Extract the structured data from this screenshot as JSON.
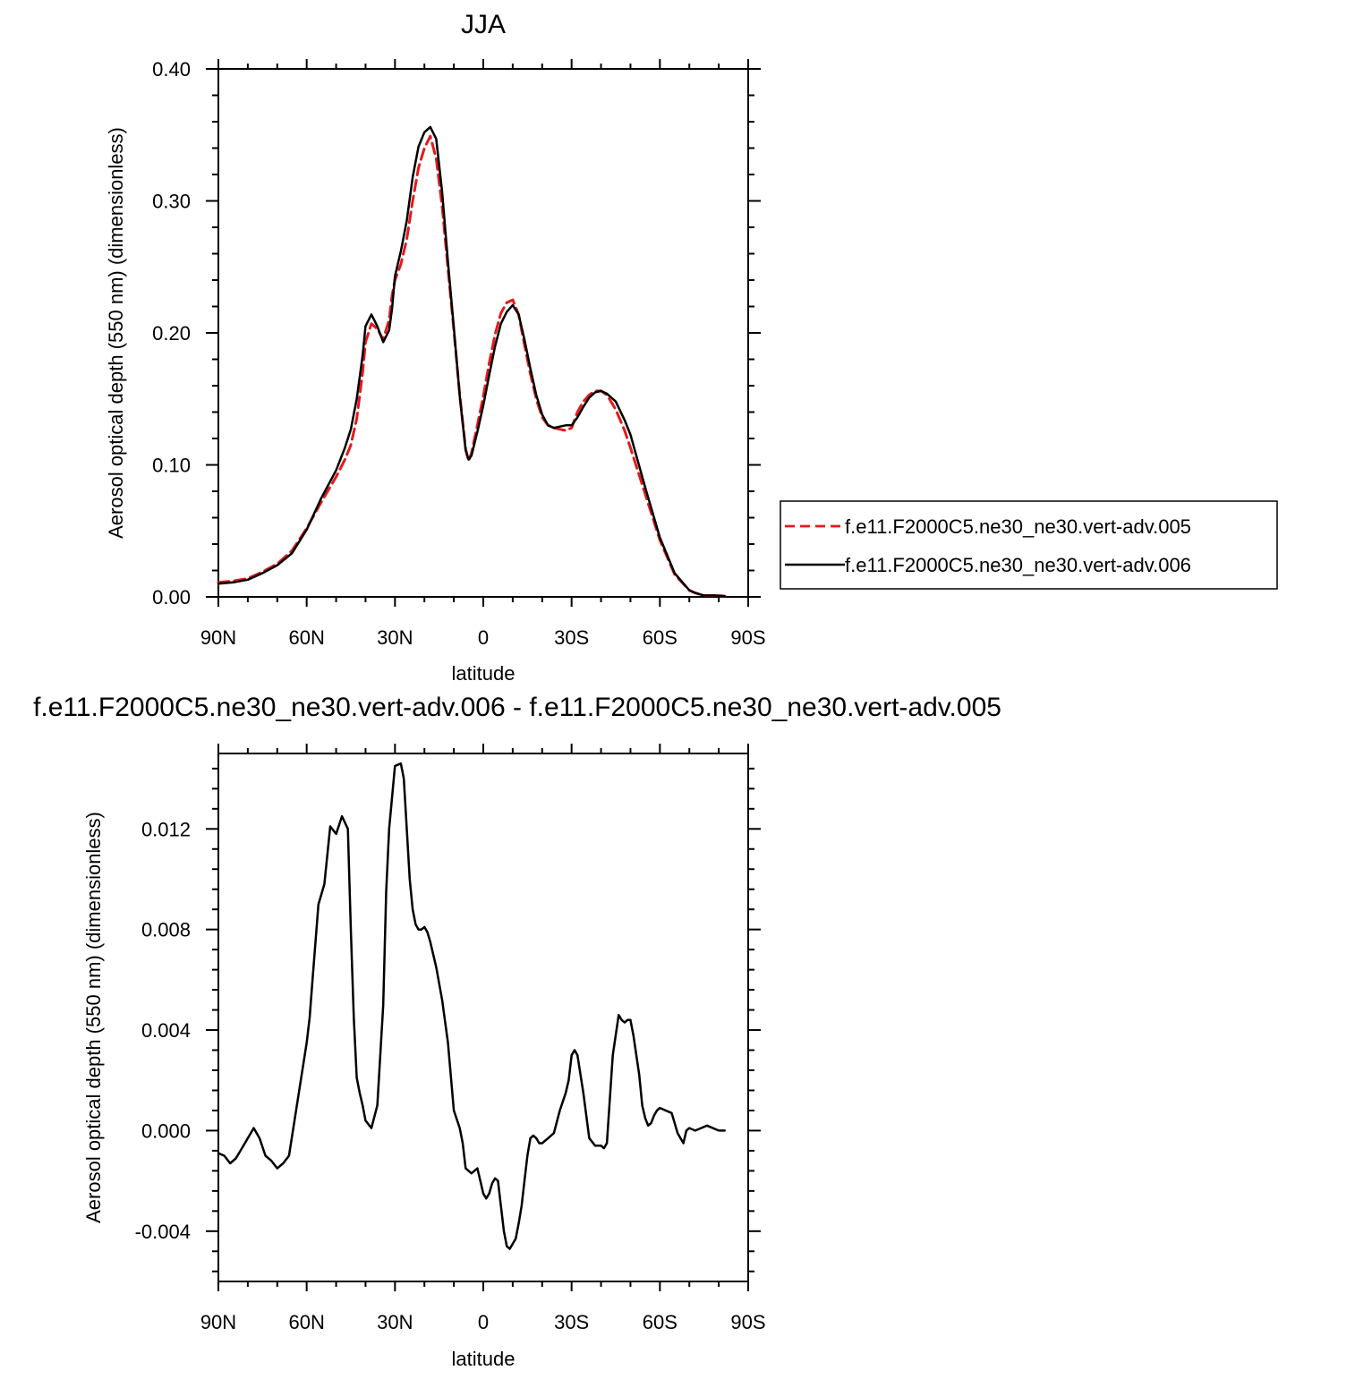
{
  "chart_data": [
    {
      "type": "line",
      "title": "JJA",
      "xlabel": "latitude",
      "ylabel": "Aerosol optical depth (550 nm) (dimensionless)",
      "xlim": [
        -90,
        90
      ],
      "ylim": [
        0,
        0.4
      ],
      "x_ticks": [
        {
          "value": -90,
          "label": "90N"
        },
        {
          "value": -60,
          "label": "60N"
        },
        {
          "value": -30,
          "label": "30N"
        },
        {
          "value": 0,
          "label": "0"
        },
        {
          "value": 30,
          "label": "30S"
        },
        {
          "value": 60,
          "label": "60S"
        },
        {
          "value": 90,
          "label": "90S"
        }
      ],
      "y_ticks": [
        {
          "value": 0.0,
          "label": "0.00"
        },
        {
          "value": 0.1,
          "label": "0.10"
        },
        {
          "value": 0.2,
          "label": "0.20"
        },
        {
          "value": 0.3,
          "label": "0.30"
        },
        {
          "value": 0.4,
          "label": "0.40"
        }
      ],
      "legend": {
        "position": "right"
      },
      "series": [
        {
          "name": "f.e11.F2000C5.ne30_ne30.vert-adv.005",
          "color": "#e41a1c",
          "dash": true,
          "x": [
            -90,
            -85,
            -80,
            -75,
            -70,
            -65,
            -60,
            -55,
            -50,
            -47,
            -45,
            -43,
            -41,
            -40,
            -38,
            -36,
            -34,
            -32,
            -31,
            -30,
            -28,
            -26,
            -24,
            -22,
            -20,
            -18,
            -16,
            -14,
            -12,
            -10,
            -8,
            -6,
            -5,
            -4,
            -2,
            0,
            2,
            4,
            6,
            8,
            10,
            12,
            14,
            16,
            18,
            20,
            22,
            24,
            26,
            28,
            30,
            32,
            34,
            36,
            38,
            40,
            42,
            45,
            48,
            50,
            55,
            60,
            65,
            70,
            72,
            75,
            80,
            82
          ],
          "y": [
            0.011,
            0.012,
            0.014,
            0.019,
            0.025,
            0.035,
            0.052,
            0.072,
            0.091,
            0.104,
            0.115,
            0.135,
            0.17,
            0.193,
            0.207,
            0.203,
            0.195,
            0.21,
            0.228,
            0.24,
            0.252,
            0.271,
            0.3,
            0.325,
            0.34,
            0.349,
            0.332,
            0.296,
            0.249,
            0.202,
            0.153,
            0.112,
            0.103,
            0.109,
            0.13,
            0.152,
            0.177,
            0.199,
            0.215,
            0.223,
            0.225,
            0.214,
            0.191,
            0.169,
            0.15,
            0.136,
            0.13,
            0.128,
            0.127,
            0.126,
            0.128,
            0.14,
            0.148,
            0.153,
            0.156,
            0.156,
            0.153,
            0.142,
            0.126,
            0.113,
            0.078,
            0.043,
            0.017,
            0.005,
            0.003,
            0.001,
            0.001,
            0.0005
          ]
        },
        {
          "name": "f.e11.F2000C5.ne30_ne30.vert-adv.006",
          "color": "#000000",
          "dash": false,
          "x": [
            -90,
            -85,
            -80,
            -75,
            -70,
            -65,
            -60,
            -55,
            -50,
            -47,
            -45,
            -43,
            -41,
            -40,
            -38,
            -36,
            -34,
            -32,
            -31,
            -30,
            -28,
            -26,
            -24,
            -22,
            -20,
            -18,
            -16,
            -14,
            -12,
            -10,
            -8,
            -6,
            -5,
            -4,
            -2,
            0,
            2,
            4,
            6,
            8,
            10,
            12,
            14,
            16,
            18,
            20,
            22,
            24,
            26,
            28,
            30,
            32,
            34,
            36,
            38,
            40,
            42,
            45,
            48,
            50,
            55,
            60,
            65,
            70,
            72,
            75,
            80,
            82
          ],
          "y": [
            0.01,
            0.011,
            0.013,
            0.018,
            0.024,
            0.033,
            0.051,
            0.075,
            0.096,
            0.113,
            0.127,
            0.15,
            0.183,
            0.205,
            0.214,
            0.205,
            0.193,
            0.202,
            0.218,
            0.243,
            0.262,
            0.285,
            0.318,
            0.341,
            0.352,
            0.356,
            0.347,
            0.307,
            0.254,
            0.204,
            0.152,
            0.111,
            0.104,
            0.107,
            0.125,
            0.145,
            0.168,
            0.19,
            0.207,
            0.216,
            0.221,
            0.214,
            0.195,
            0.173,
            0.153,
            0.138,
            0.13,
            0.128,
            0.129,
            0.13,
            0.13,
            0.136,
            0.144,
            0.151,
            0.155,
            0.156,
            0.154,
            0.148,
            0.134,
            0.123,
            0.083,
            0.045,
            0.018,
            0.005,
            0.003,
            0.001,
            0.001,
            0.0005
          ]
        }
      ]
    },
    {
      "type": "line",
      "title": "f.e11.F2000C5.ne30_ne30.vert-adv.006 - f.e11.F2000C5.ne30_ne30.vert-adv.005",
      "xlabel": "latitude",
      "ylabel": "Aerosol optical depth (550 nm) (dimensionless)",
      "xlim": [
        -90,
        90
      ],
      "ylim": [
        -0.006,
        0.015
      ],
      "x_ticks": [
        {
          "value": -90,
          "label": "90N"
        },
        {
          "value": -60,
          "label": "60N"
        },
        {
          "value": -30,
          "label": "30N"
        },
        {
          "value": 0,
          "label": "0"
        },
        {
          "value": 30,
          "label": "30S"
        },
        {
          "value": 60,
          "label": "60S"
        },
        {
          "value": 90,
          "label": "90S"
        }
      ],
      "y_ticks": [
        {
          "value": -0.004,
          "label": "-0.004"
        },
        {
          "value": 0.0,
          "label": "0.000"
        },
        {
          "value": 0.004,
          "label": "0.004"
        },
        {
          "value": 0.008,
          "label": "0.008"
        },
        {
          "value": 0.012,
          "label": "0.012"
        }
      ],
      "series": [
        {
          "color": "#000000",
          "dash": false,
          "x": [
            -90,
            -88,
            -86,
            -84,
            -82,
            -80,
            -78,
            -76,
            -74,
            -72,
            -70,
            -68,
            -66,
            -64,
            -62,
            -60,
            -59,
            -58,
            -56,
            -54,
            -52,
            -50,
            -48,
            -46,
            -45,
            -44,
            -43,
            -42,
            -41,
            -40,
            -38,
            -36,
            -34,
            -33,
            -32,
            -30,
            -28,
            -27,
            -26,
            -25,
            -24,
            -23,
            -22,
            -21,
            -20,
            -19,
            -18,
            -17,
            -16,
            -14,
            -12,
            -10,
            -8,
            -7,
            -6,
            -4,
            -2,
            0,
            1,
            2,
            3,
            4,
            5,
            6,
            7,
            8,
            9,
            10,
            11,
            12,
            13,
            14,
            15,
            16,
            17,
            18,
            19,
            20,
            21,
            22,
            24,
            26,
            28,
            29,
            30,
            31,
            32,
            34,
            36,
            38,
            39,
            40,
            41,
            42,
            44,
            46,
            47,
            48,
            49,
            50,
            51,
            52,
            53,
            54,
            55,
            56,
            57,
            58,
            59,
            60,
            62,
            64,
            66,
            68,
            69,
            70,
            72,
            74,
            76,
            78,
            80,
            81,
            82
          ],
          "y": [
            -0.0009,
            -0.001,
            -0.0013,
            -0.0011,
            -0.0007,
            -0.0003,
            0.0001,
            -0.0003,
            -0.001,
            -0.0012,
            -0.0015,
            -0.0013,
            -0.001,
            0.0005,
            0.002,
            0.0035,
            0.0045,
            0.006,
            0.009,
            0.0098,
            0.0121,
            0.0118,
            0.0125,
            0.012,
            0.008,
            0.0045,
            0.0021,
            0.0015,
            0.001,
            0.0004,
            0.0001,
            0.001,
            0.005,
            0.0095,
            0.012,
            0.0145,
            0.0146,
            0.014,
            0.012,
            0.01,
            0.0088,
            0.0082,
            0.008,
            0.008,
            0.0081,
            0.0079,
            0.0075,
            0.007,
            0.0065,
            0.0052,
            0.0035,
            0.0008,
            0.0001,
            -0.0005,
            -0.0015,
            -0.0017,
            -0.0015,
            -0.0025,
            -0.0027,
            -0.0025,
            -0.0021,
            -0.0019,
            -0.002,
            -0.003,
            -0.004,
            -0.0046,
            -0.0047,
            -0.0045,
            -0.0043,
            -0.0037,
            -0.003,
            -0.002,
            -0.001,
            -0.0003,
            -0.0002,
            -0.0003,
            -0.0005,
            -0.0005,
            -0.0004,
            -0.0003,
            -0.0001,
            0.0008,
            0.0015,
            0.002,
            0.003,
            0.0032,
            0.003,
            0.0015,
            -0.0003,
            -0.0006,
            -0.0006,
            -0.0006,
            -0.0007,
            -0.0005,
            0.003,
            0.0046,
            0.0044,
            0.0043,
            0.0044,
            0.0044,
            0.0038,
            0.003,
            0.0022,
            0.001,
            0.0005,
            0.0002,
            0.0003,
            0.0006,
            0.0008,
            0.0009,
            0.0008,
            0.0007,
            -0.0001,
            -0.0005,
            0.0,
            0.0001,
            0.0,
            0.0001,
            0.0002,
            0.0001,
            0.0,
            0.0,
            0.0
          ]
        }
      ]
    }
  ]
}
